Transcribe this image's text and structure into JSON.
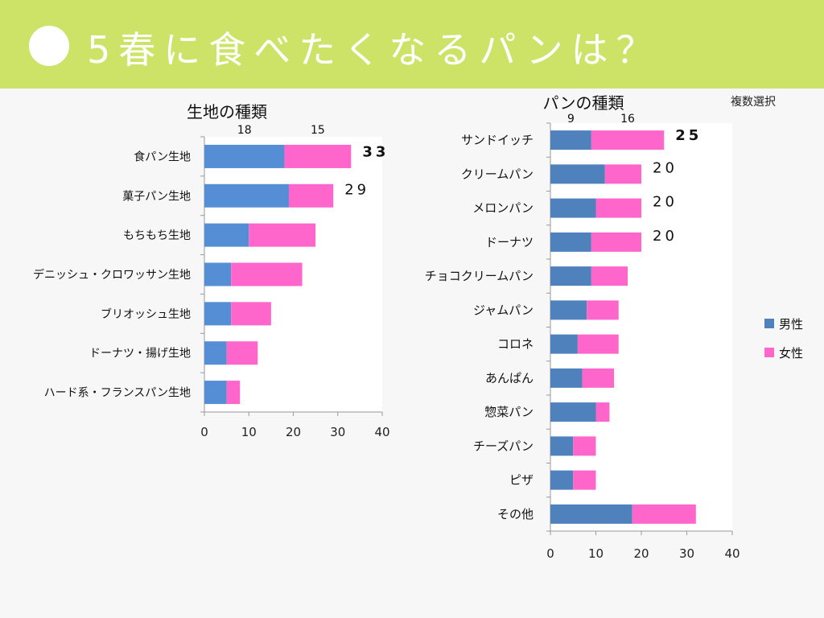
{
  "header": {
    "title": "5春に食べたくなるパンは？"
  },
  "note": "複数選択",
  "colors": {
    "header_bg": "#cce367",
    "male_left": "#558ed5",
    "male_right": "#4f81bd",
    "female": "#ff66cc"
  },
  "chart_data": [
    {
      "type": "bar",
      "orientation": "horizontal",
      "stacked": true,
      "title": "生地の種類",
      "categories": [
        "食パン生地",
        "菓子パン生地",
        "もちもち生地",
        "デニッシュ・クロワッサン生地",
        "ブリオッシュ生地",
        "ドーナツ・揚げ生地",
        "ハード系・フランスパン生地"
      ],
      "series": [
        {
          "name": "男性",
          "values": [
            18,
            19,
            10,
            6,
            6,
            5,
            5
          ]
        },
        {
          "name": "女性",
          "values": [
            15,
            10,
            15,
            16,
            9,
            7,
            3
          ]
        }
      ],
      "xlim": [
        0,
        40
      ],
      "xticks": [
        "0",
        "10",
        "20",
        "30",
        "40"
      ],
      "annotations": [
        {
          "text": "18",
          "category": "食パン生地",
          "series": "男性"
        },
        {
          "text": "15",
          "category": "食パン生地",
          "series": "女性"
        },
        {
          "text": "33",
          "category": "食パン生地",
          "bold": true
        },
        {
          "text": "29",
          "category": "菓子パン生地"
        }
      ]
    },
    {
      "type": "bar",
      "orientation": "horizontal",
      "stacked": true,
      "title": "パンの種類",
      "categories": [
        "サンドイッチ",
        "クリームパン",
        "メロンパン",
        "ドーナツ",
        "チョコクリームパン",
        "ジャムパン",
        "コロネ",
        "あんぱん",
        "惣菜パン",
        "チーズパン",
        "ピザ",
        "その他"
      ],
      "series": [
        {
          "name": "男性",
          "values": [
            9,
            12,
            10,
            9,
            9,
            8,
            6,
            7,
            10,
            5,
            5,
            18
          ]
        },
        {
          "name": "女性",
          "values": [
            16,
            8,
            10,
            11,
            8,
            7,
            9,
            7,
            3,
            5,
            5,
            14
          ]
        }
      ],
      "xlim": [
        0,
        40
      ],
      "xticks": [
        "0",
        "10",
        "20",
        "30",
        "40"
      ],
      "legend": {
        "position": "right",
        "entries": [
          "男性",
          "女性"
        ]
      },
      "annotations": [
        {
          "text": "9",
          "category": "サンドイッチ",
          "series": "男性"
        },
        {
          "text": "16",
          "category": "サンドイッチ",
          "series": "女性"
        },
        {
          "text": "25",
          "category": "サンドイッチ",
          "bold": true
        },
        {
          "text": "20",
          "category": "クリームパン"
        },
        {
          "text": "20",
          "category": "メロンパン"
        },
        {
          "text": "20",
          "category": "ドーナツ"
        }
      ]
    }
  ]
}
